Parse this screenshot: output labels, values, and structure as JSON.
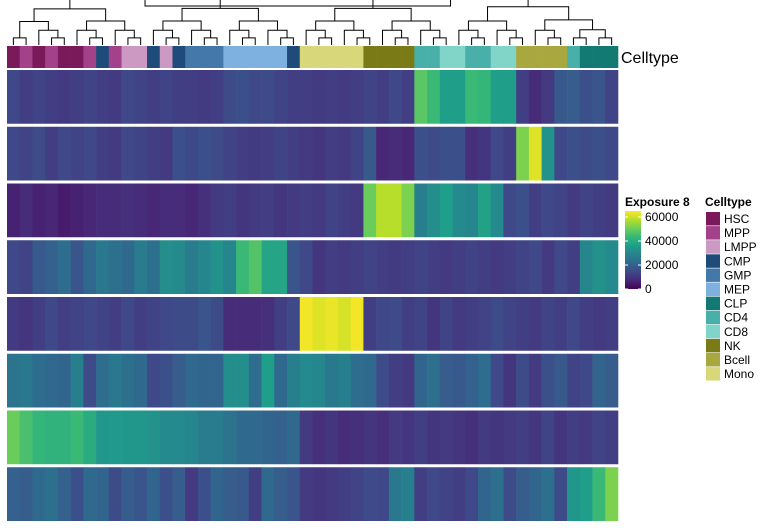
{
  "chart_data": {
    "type": "heatmap",
    "annotation_name": "Celltype",
    "column_celltypes": [
      "HSC",
      "MPP",
      "HSC",
      "MPP",
      "HSC",
      "HSC",
      "MPP",
      "CMP",
      "MPP",
      "LMPP",
      "LMPP",
      "CMP",
      "LMPP",
      "CMP",
      "GMP",
      "GMP",
      "GMP",
      "MEP",
      "MEP",
      "MEP",
      "MEP",
      "MEP",
      "CMP",
      "Mono",
      "Mono",
      "Mono",
      "Mono",
      "Mono",
      "NK",
      "NK",
      "NK",
      "NK",
      "CD4",
      "CD4",
      "CD8",
      "CD8",
      "CD4",
      "CD4",
      "CD8",
      "CD8",
      "Bcell",
      "Bcell",
      "Bcell",
      "Bcell",
      "CD4",
      "CLP",
      "CLP",
      "CLP"
    ],
    "rows": [
      [
        14000,
        12000,
        13000,
        12000,
        11000,
        12000,
        13000,
        12000,
        11000,
        14000,
        13000,
        12000,
        13000,
        12000,
        12000,
        11000,
        12000,
        15000,
        16000,
        14000,
        15000,
        13000,
        12000,
        12000,
        11000,
        12000,
        11000,
        12000,
        13000,
        12000,
        14000,
        12000,
        48000,
        44000,
        36000,
        36000,
        44000,
        43000,
        36000,
        36000,
        12000,
        8000,
        11000,
        18000,
        19000,
        16000,
        17000,
        13000
      ],
      [
        14000,
        13000,
        15000,
        12000,
        14000,
        13000,
        14000,
        12000,
        11000,
        14000,
        13000,
        12000,
        11000,
        16000,
        14000,
        16000,
        15000,
        13000,
        12000,
        11000,
        12000,
        13000,
        12000,
        11000,
        10000,
        12000,
        11000,
        13000,
        18000,
        7000,
        8000,
        7000,
        16000,
        15000,
        16000,
        16000,
        9000,
        10000,
        14000,
        12000,
        52000,
        62000,
        33000,
        14000,
        16000,
        15000,
        16000,
        14000
      ],
      [
        6000,
        8000,
        6000,
        7000,
        5000,
        6000,
        7000,
        8000,
        8000,
        9000,
        8000,
        7000,
        8000,
        8000,
        7000,
        9000,
        11000,
        12000,
        10000,
        11000,
        12000,
        10000,
        11000,
        12000,
        11000,
        13000,
        12000,
        11000,
        50000,
        58000,
        58000,
        52000,
        28000,
        32000,
        36000,
        31000,
        30000,
        37000,
        31000,
        14000,
        16000,
        12000,
        14000,
        13000,
        11000,
        13000,
        12000,
        11000
      ],
      [
        14000,
        13000,
        18000,
        20000,
        23000,
        17000,
        22000,
        26000,
        24000,
        22000,
        27000,
        24000,
        32000,
        31000,
        27000,
        30000,
        33000,
        30000,
        44000,
        47000,
        38000,
        38000,
        17000,
        14000,
        10000,
        12000,
        11000,
        12000,
        13000,
        12000,
        11000,
        12000,
        13000,
        12000,
        11000,
        12000,
        13000,
        12000,
        11000,
        12000,
        13000,
        14000,
        11000,
        14000,
        12000,
        30000,
        33000,
        31000
      ],
      [
        11000,
        10000,
        12000,
        14000,
        12000,
        13000,
        14000,
        13000,
        12000,
        14000,
        12000,
        13000,
        14000,
        15000,
        15000,
        17000,
        15000,
        8000,
        8000,
        8000,
        9000,
        12000,
        14000,
        64000,
        62000,
        63000,
        61000,
        64000,
        12000,
        14000,
        15000,
        12000,
        13000,
        10000,
        13000,
        11000,
        12000,
        13000,
        15000,
        13000,
        12000,
        11000,
        13000,
        12000,
        14000,
        12000,
        11000,
        12000
      ],
      [
        25000,
        26000,
        23000,
        22000,
        21000,
        28000,
        15000,
        23000,
        26000,
        24000,
        22000,
        14000,
        16000,
        19000,
        22000,
        21000,
        21000,
        32000,
        32000,
        23000,
        36000,
        22000,
        28000,
        31000,
        30000,
        26000,
        28000,
        23000,
        22000,
        15000,
        12000,
        11000,
        21000,
        24000,
        19000,
        18000,
        20000,
        23000,
        14000,
        10000,
        15000,
        11000,
        16000,
        18000,
        13000,
        14000,
        21000,
        19000
      ],
      [
        50000,
        46000,
        43000,
        42000,
        42000,
        44000,
        40000,
        34000,
        35000,
        34000,
        34000,
        33000,
        31000,
        31000,
        30000,
        27000,
        27000,
        25000,
        22000,
        22000,
        21000,
        20000,
        22000,
        11000,
        9000,
        10000,
        8000,
        9000,
        10000,
        9000,
        11000,
        10000,
        12000,
        10000,
        11000,
        10000,
        9000,
        11000,
        10000,
        11000,
        12000,
        10000,
        13000,
        10000,
        12000,
        11000,
        13000,
        12000
      ],
      [
        20000,
        19000,
        22000,
        24000,
        20000,
        16000,
        22000,
        21000,
        15000,
        19000,
        17000,
        21000,
        16000,
        19000,
        11000,
        16000,
        21000,
        19000,
        18000,
        12000,
        22000,
        19000,
        17000,
        11000,
        10000,
        11000,
        12000,
        13000,
        15000,
        14000,
        26000,
        28000,
        12000,
        14000,
        13000,
        12000,
        14000,
        21000,
        24000,
        15000,
        19000,
        21000,
        24000,
        15000,
        34000,
        36000,
        44000,
        52000
      ]
    ],
    "color_scale": {
      "title": "Exposure 8",
      "min": 0,
      "max": 65000,
      "stops": [
        "#440154",
        "#482878",
        "#3e4a89",
        "#31688e",
        "#26828e",
        "#1f9e89",
        "#35b779",
        "#6ece58",
        "#b5de2b",
        "#fde725"
      ],
      "tick_values": [
        0,
        20000,
        40000,
        60000
      ],
      "tick_labels": [
        "0",
        "20000",
        "40000",
        "60000"
      ]
    },
    "celltype_legend": {
      "title": "Celltype",
      "items": [
        {
          "label": "HSC",
          "color": "#7a1a5b"
        },
        {
          "label": "MPP",
          "color": "#a3418a"
        },
        {
          "label": "LMPP",
          "color": "#cc99c2"
        },
        {
          "label": "CMP",
          "color": "#1e4b7a"
        },
        {
          "label": "GMP",
          "color": "#4477aa"
        },
        {
          "label": "MEP",
          "color": "#7eb0e0"
        },
        {
          "label": "CLP",
          "color": "#127a72"
        },
        {
          "label": "CD4",
          "color": "#48b0a8"
        },
        {
          "label": "CD8",
          "color": "#80d4c8"
        },
        {
          "label": "NK",
          "color": "#7a7a16"
        },
        {
          "label": "Bcell",
          "color": "#a8a83e"
        },
        {
          "label": "Mono",
          "color": "#d8d87a"
        }
      ]
    },
    "dendrogram_leaf_order_note": ""
  }
}
